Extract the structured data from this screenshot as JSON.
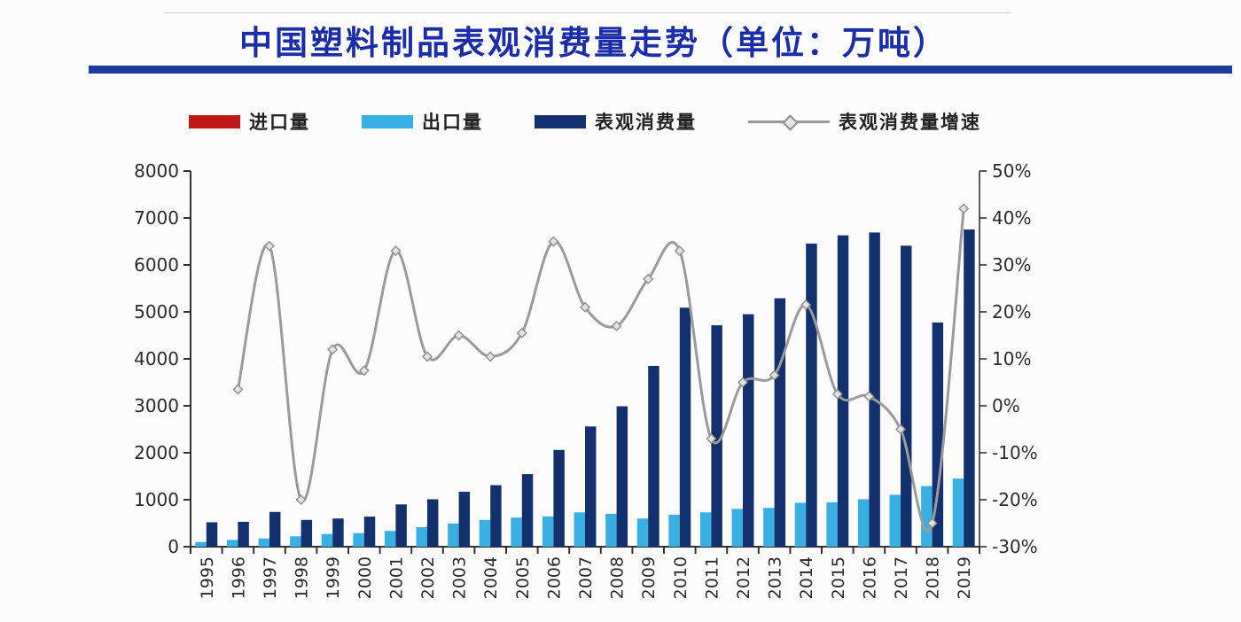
{
  "title": "中国塑料制品表观消费量走势（单位：万吨）",
  "legend": [
    {
      "id": "import",
      "label": "进口量",
      "type": "bar",
      "color": "#c01818"
    },
    {
      "id": "export",
      "label": "出口量",
      "type": "bar",
      "color": "#38b0e3"
    },
    {
      "id": "consumption",
      "label": "表观消费量",
      "type": "bar",
      "color": "#14316f"
    },
    {
      "id": "growth",
      "label": "表观消费量增速",
      "type": "line",
      "color": "#9b9b9b"
    }
  ],
  "colors": {
    "title_blue": "#1b2da8",
    "rule_navy": "#1c3b9c",
    "import_red": "#c01818",
    "export_blue": "#38b0e3",
    "consumption_navy": "#14316f",
    "growth_gray": "#9b9b9b",
    "axis": "#333333"
  },
  "chart_data": {
    "type": "bar",
    "subtype": "grouped bars with secondary-axis line (combo chart)",
    "title": "中国塑料制品表观消费量走势（单位：万吨）",
    "categories": [
      1995,
      1996,
      1997,
      1998,
      1999,
      2000,
      2001,
      2002,
      2003,
      2004,
      2005,
      2006,
      2007,
      2008,
      2009,
      2010,
      2011,
      2012,
      2013,
      2014,
      2015,
      2016,
      2017,
      2018,
      2019
    ],
    "series": [
      {
        "name": "进口量",
        "type": "bar",
        "axis": "left",
        "color": "#c01818",
        "note": "legend entry present but bars are ~zero height / not visible in image",
        "values": [
          0,
          0,
          0,
          0,
          0,
          0,
          0,
          0,
          0,
          0,
          0,
          0,
          0,
          0,
          0,
          0,
          0,
          0,
          0,
          0,
          0,
          0,
          0,
          0,
          0
        ]
      },
      {
        "name": "出口量",
        "type": "bar",
        "axis": "left",
        "color": "#38b0e3",
        "values": [
          100,
          145,
          175,
          220,
          270,
          290,
          335,
          415,
          495,
          570,
          620,
          645,
          730,
          700,
          600,
          680,
          730,
          805,
          825,
          935,
          945,
          1010,
          1105,
          1290,
          1450
        ]
      },
      {
        "name": "表观消费量",
        "type": "bar",
        "axis": "left",
        "color": "#14316f",
        "values": [
          520,
          530,
          740,
          570,
          600,
          640,
          900,
          1010,
          1170,
          1310,
          1545,
          2060,
          2560,
          2990,
          3850,
          5090,
          4715,
          4950,
          5290,
          6455,
          6630,
          6690,
          6410,
          4775,
          6755
        ]
      },
      {
        "name": "表观消费量增速",
        "type": "line",
        "axis": "right",
        "unit": "%",
        "color": "#9b9b9b",
        "marker": "diamond",
        "values": [
          null,
          3.5,
          34,
          -20,
          12,
          7.5,
          33,
          10.5,
          15,
          10.5,
          15.5,
          35,
          21,
          17,
          27,
          33,
          -7,
          5,
          6.5,
          21.5,
          2.5,
          2,
          -5,
          -25,
          42
        ]
      }
    ],
    "left_axis": {
      "min": 0,
      "max": 8000,
      "step": 1000,
      "tick_labels": [
        "0",
        "1000",
        "2000",
        "3000",
        "4000",
        "5000",
        "6000",
        "7000",
        "8000"
      ]
    },
    "right_axis": {
      "min": -30,
      "max": 50,
      "step": 10,
      "tick_labels": [
        "-30%",
        "-20%",
        "-10%",
        "0%",
        "10%",
        "20%",
        "30%",
        "40%",
        "50%"
      ]
    },
    "grid": false,
    "legend_position": "top"
  }
}
